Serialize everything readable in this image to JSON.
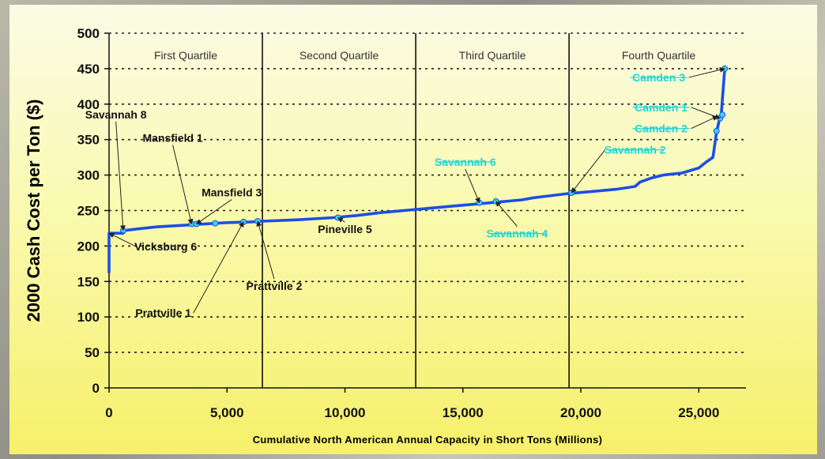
{
  "chart_data": {
    "type": "line",
    "title": "",
    "ylabel": "2000 Cash Cost per Ton ($)",
    "xlabel": "Cumulative North American Annual Capacity in Short Tons (Millions)",
    "xlim": [
      0,
      27000
    ],
    "ylim": [
      0,
      500
    ],
    "x_ticks": [
      0,
      5000,
      10000,
      15000,
      20000,
      25000
    ],
    "x_tick_labels": [
      "0",
      "5,000",
      "10,000",
      "15,000",
      "20,000",
      "25,000"
    ],
    "y_ticks": [
      0,
      50,
      100,
      150,
      200,
      250,
      300,
      350,
      400,
      450,
      500
    ],
    "y_tick_labels": [
      "0",
      "50",
      "100",
      "150",
      "200",
      "250",
      "300",
      "350",
      "400",
      "450",
      "500"
    ],
    "grid": "horizontal-dotted",
    "quartile_dividers": [
      6500,
      13000,
      19500
    ],
    "quartile_labels": [
      {
        "label": "First Quartile",
        "x": 3250
      },
      {
        "label": "Second Quartile",
        "x": 9750
      },
      {
        "label": "Third Quartile",
        "x": 16250
      },
      {
        "label": "Fourth Quartile",
        "x": 23300
      }
    ],
    "series": [
      {
        "color": "#1a4fe6",
        "points": [
          [
            0,
            162
          ],
          [
            0,
            218
          ],
          [
            600,
            218
          ],
          [
            700,
            222
          ],
          [
            1200,
            224
          ],
          [
            2000,
            227
          ],
          [
            3000,
            229
          ],
          [
            4000,
            231
          ],
          [
            5000,
            233
          ],
          [
            6000,
            234
          ],
          [
            6500,
            235
          ],
          [
            8000,
            237
          ],
          [
            9500,
            240
          ],
          [
            10500,
            243
          ],
          [
            11500,
            247
          ],
          [
            12500,
            250
          ],
          [
            13500,
            253
          ],
          [
            14500,
            256
          ],
          [
            15500,
            259
          ],
          [
            16500,
            262
          ],
          [
            17500,
            265
          ],
          [
            18000,
            268
          ],
          [
            18500,
            270
          ],
          [
            19500,
            274
          ],
          [
            20500,
            277
          ],
          [
            21500,
            280
          ],
          [
            22300,
            284
          ],
          [
            22500,
            290
          ],
          [
            23000,
            296
          ],
          [
            23500,
            300
          ],
          [
            24300,
            303
          ],
          [
            25000,
            310
          ],
          [
            25300,
            318
          ],
          [
            25600,
            325
          ],
          [
            25750,
            360
          ],
          [
            25850,
            375
          ],
          [
            25950,
            385
          ],
          [
            26100,
            450
          ]
        ]
      }
    ],
    "markers": [
      {
        "x": 600,
        "y": 222
      },
      {
        "x": 3500,
        "y": 231
      },
      {
        "x": 3700,
        "y": 231
      },
      {
        "x": 4500,
        "y": 232
      },
      {
        "x": 5700,
        "y": 234
      },
      {
        "x": 6300,
        "y": 235
      },
      {
        "x": 9700,
        "y": 240
      },
      {
        "x": 15700,
        "y": 261
      },
      {
        "x": 16400,
        "y": 263
      },
      {
        "x": 19600,
        "y": 275
      },
      {
        "x": 25750,
        "y": 362
      },
      {
        "x": 25900,
        "y": 380
      },
      {
        "x": 26000,
        "y": 385
      },
      {
        "x": 26100,
        "y": 450
      }
    ],
    "annotations": [
      {
        "text": "Savannah 8",
        "color": "black",
        "tx": 290,
        "ty": 380,
        "ax": 600,
        "ay": 222
      },
      {
        "text": "Mansfield 1",
        "color": "black",
        "tx": 2700,
        "ty": 347,
        "ax": 3500,
        "ay": 231
      },
      {
        "text": "Mansfield 3",
        "color": "black",
        "tx": 5200,
        "ty": 270,
        "ax": 3700,
        "ay": 231
      },
      {
        "text": "Vicksburg 6",
        "color": "black",
        "tx": 2400,
        "ty": 194,
        "ax": 0,
        "ay": 218
      },
      {
        "text": "Prattville 2",
        "color": "black",
        "tx": 7000,
        "ty": 138,
        "ax": 6300,
        "ay": 235
      },
      {
        "text": "Prattville 1",
        "color": "black",
        "tx": 2300,
        "ty": 100,
        "ax": 5700,
        "ay": 234
      },
      {
        "text": "Pineville 5",
        "color": "black",
        "tx": 10000,
        "ty": 218,
        "ax": 9700,
        "ay": 240
      },
      {
        "text": "Savannah 6",
        "color": "cyan",
        "tx": 15100,
        "ty": 313,
        "ax": 15700,
        "ay": 261
      },
      {
        "text": "Savannah 4",
        "color": "cyan",
        "tx": 17300,
        "ty": 212,
        "ax": 16400,
        "ay": 263
      },
      {
        "text": "Savannah 2",
        "color": "cyan",
        "tx": 22300,
        "ty": 330,
        "ax": 19600,
        "ay": 275
      },
      {
        "text": "Camden 3",
        "color": "cyan",
        "tx": 23300,
        "ty": 432,
        "ax": 26100,
        "ay": 450
      },
      {
        "text": "Camden 1",
        "color": "cyan",
        "tx": 23400,
        "ty": 390,
        "ax": 25900,
        "ay": 380
      },
      {
        "text": "Camden 2",
        "color": "cyan",
        "tx": 23400,
        "ty": 360,
        "ax": 25800,
        "ay": 383
      }
    ]
  }
}
